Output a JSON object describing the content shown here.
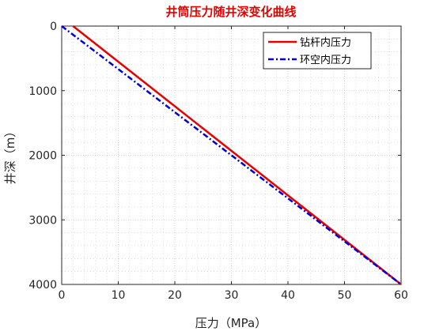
{
  "chart_data": {
    "type": "line",
    "title": "井筒压力随井深变化曲线",
    "xlabel": "压力（MPa）",
    "ylabel": "井深（m）",
    "xlim": [
      0,
      60
    ],
    "ylim": [
      0,
      4000
    ],
    "y_reversed": true,
    "x_ticks": [
      0,
      10,
      20,
      30,
      40,
      50,
      60
    ],
    "y_ticks": [
      0,
      1000,
      2000,
      3000,
      4000
    ],
    "grid": "major and minor dotted",
    "legend_position": "top-right",
    "series": [
      {
        "name": "钻杆内压力",
        "color": "#e60000",
        "dash": "solid",
        "points": [
          [
            2.0,
            0
          ],
          [
            60.0,
            4000
          ]
        ]
      },
      {
        "name": "环空内压力",
        "color": "#0000d0",
        "dash": "dashdot",
        "points": [
          [
            0.0,
            0
          ],
          [
            60.0,
            4000
          ]
        ]
      }
    ]
  },
  "colors": {
    "title": "#e60000",
    "axis": "#262626",
    "grid": "#c8c8c8"
  }
}
